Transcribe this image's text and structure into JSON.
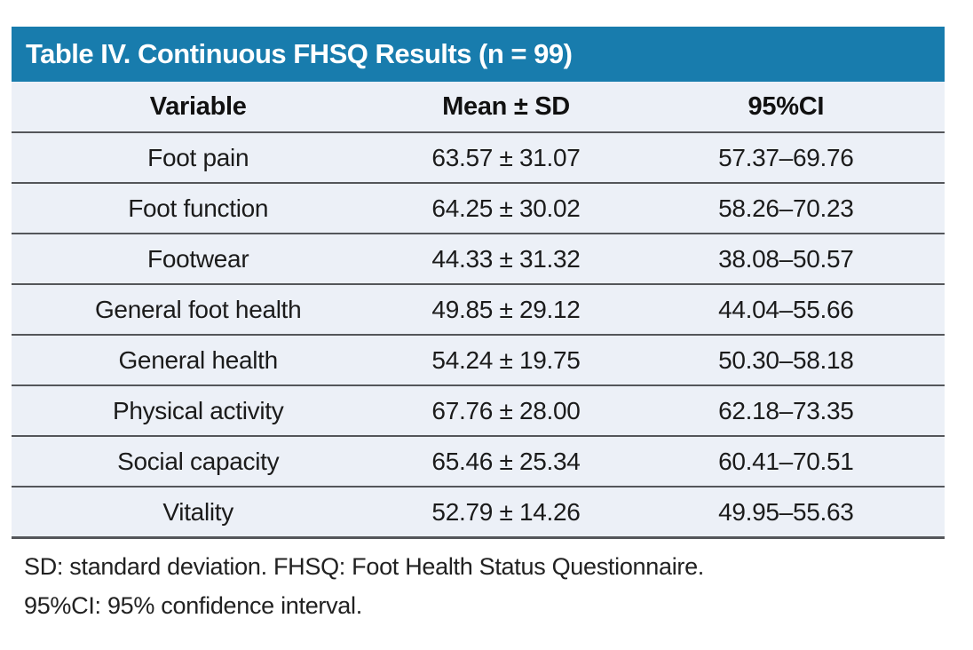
{
  "table": {
    "title": "Table IV. Continuous FHSQ Results (n = 99)",
    "columns": [
      "Variable",
      "Mean ± SD",
      "95%CI"
    ],
    "rows": [
      {
        "variable": "Foot pain",
        "mean_sd": "63.57 ± 31.07",
        "ci": "57.37–69.76"
      },
      {
        "variable": "Foot function",
        "mean_sd": "64.25 ± 30.02",
        "ci": "58.26–70.23"
      },
      {
        "variable": "Footwear",
        "mean_sd": "44.33 ± 31.32",
        "ci": "38.08–50.57"
      },
      {
        "variable": "General foot health",
        "mean_sd": "49.85 ± 29.12",
        "ci": "44.04–55.66"
      },
      {
        "variable": "General health",
        "mean_sd": "54.24 ± 19.75",
        "ci": "50.30–58.18"
      },
      {
        "variable": "Physical activity",
        "mean_sd": "67.76 ± 28.00",
        "ci": "62.18–73.35"
      },
      {
        "variable": "Social capacity",
        "mean_sd": "65.46 ± 25.34",
        "ci": "60.41–70.51"
      },
      {
        "variable": "Vitality",
        "mean_sd": "52.79 ± 14.26",
        "ci": "49.95–55.63"
      }
    ],
    "footnotes": [
      "SD: standard deviation. FHSQ: Foot Health Status Questionnaire.",
      "95%CI: 95% confidence interval."
    ]
  },
  "colors": {
    "header_bar_bg": "#187CAD",
    "title_text": "#FFFFFF",
    "row_bg": "#ECF0F7",
    "divider": "#54565A",
    "body_text": "#1B1B1B"
  }
}
